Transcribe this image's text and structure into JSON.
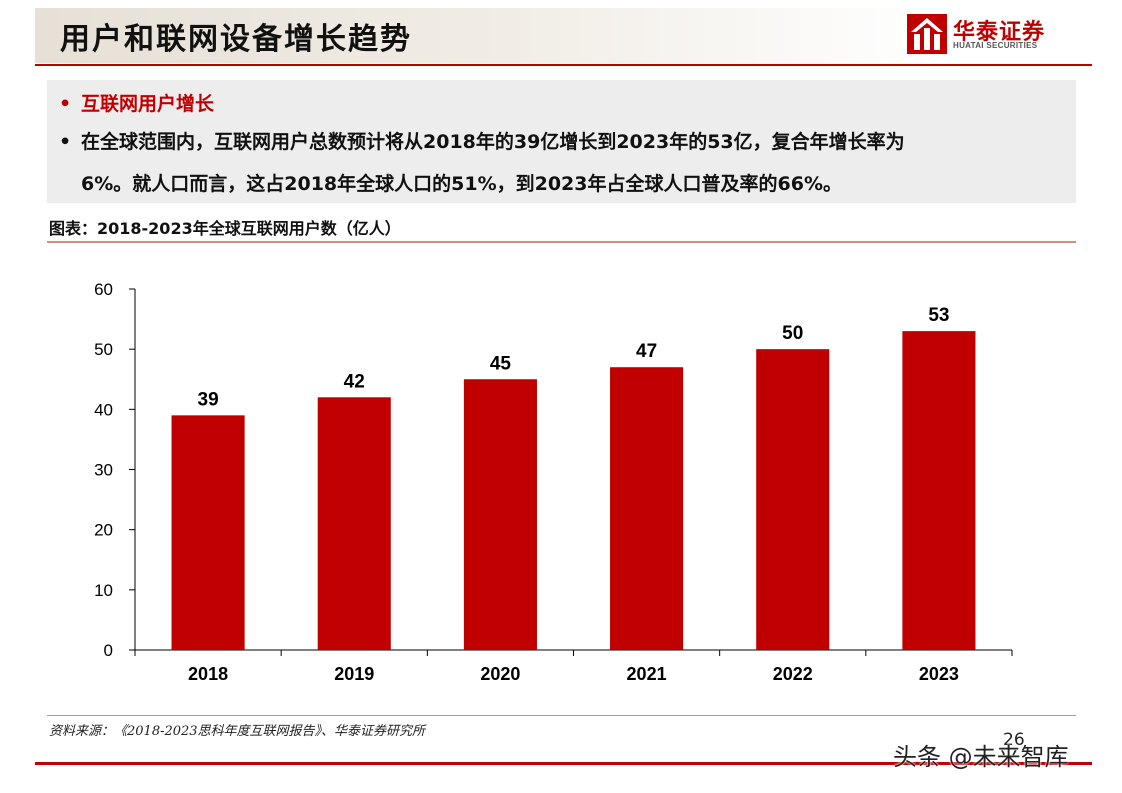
{
  "header": {
    "title": "用户和联网设备增长趋势",
    "logo_cn": "华泰证券",
    "logo_en": "HUATAI SECURITIES"
  },
  "summary": {
    "bullet_heading": "互联网用户增长",
    "bullet_text_line1": "在全球范围内，互联网用户总数预计将从2018年的39亿增长到2023年的53亿，复合年增长率为",
    "bullet_text_line2": "6%。就人口而言，这占2018年全球人口的51%，到2023年占全球人口普及率的66%。"
  },
  "chart_caption": "图表：2018-2023年全球互联网用户数（亿人）",
  "chart_data": {
    "type": "bar",
    "title": "",
    "xlabel": "",
    "ylabel": "",
    "categories": [
      "2018",
      "2019",
      "2020",
      "2021",
      "2022",
      "2023"
    ],
    "values": [
      39,
      42,
      45,
      47,
      50,
      53
    ],
    "ylim": [
      0,
      60
    ],
    "yticks": [
      0,
      10,
      20,
      30,
      40,
      50,
      60
    ],
    "grid": false,
    "legend": "none",
    "bar_color": "#c00000"
  },
  "source": "资料来源：《2018-2023思科年度互联网报告》、华泰证券研究所",
  "page_number": "26",
  "watermark": "头条 @未来智库",
  "colors": {
    "accent": "#c00000",
    "summary_bg": "#ededed"
  }
}
